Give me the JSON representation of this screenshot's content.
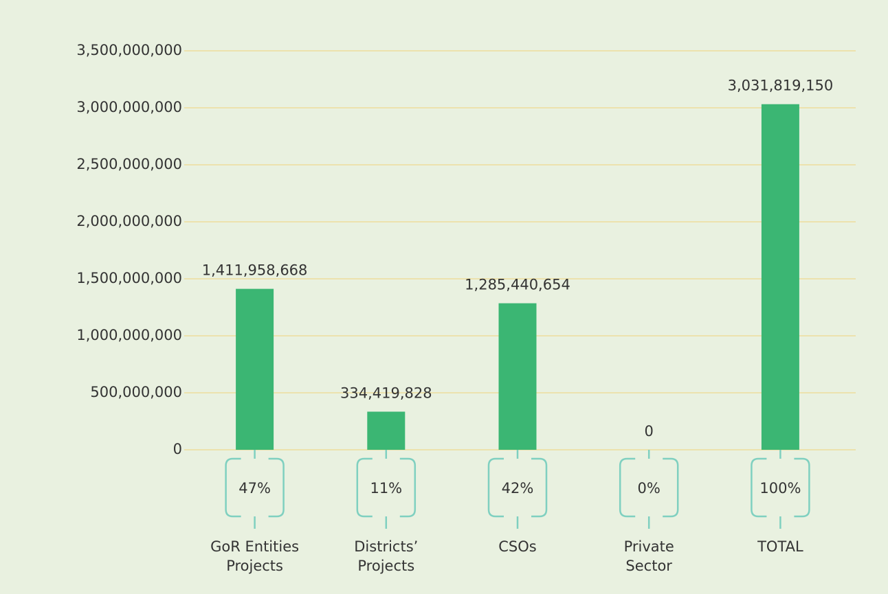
{
  "chart_data": {
    "type": "bar",
    "categories": [
      "GoR Entities\nProjects",
      "Districts’\nProjects",
      "CSOs",
      "Private\nSector",
      "TOTAL"
    ],
    "values": [
      1411958668,
      334419828,
      1285440654,
      0,
      3031819150
    ],
    "value_labels": [
      "1,411,958,668",
      "334,419,828",
      "1,285,440,654",
      "0",
      "3,031,819,150"
    ],
    "share_labels": [
      "47%",
      "11%",
      "42%",
      "0%",
      "100%"
    ],
    "color": "#3bb673",
    "ylim": [
      0,
      3500000000
    ],
    "yticks": [
      0,
      {
        "value": 500000000,
        "label": "500,000,000"
      },
      {
        "value": 1000000000,
        "label": "1,000,000,000"
      },
      {
        "value": 1500000000,
        "label": "1,500,000,000"
      },
      {
        "value": 2000000000,
        "label": "2,000,000,000"
      },
      {
        "value": 2500000000,
        "label": "2,500,000,000"
      },
      {
        "value": 3000000000,
        "label": "3,000,000,000"
      },
      {
        "value": 3500000000,
        "label": "3,500,000,000"
      }
    ],
    "grid": true
  }
}
